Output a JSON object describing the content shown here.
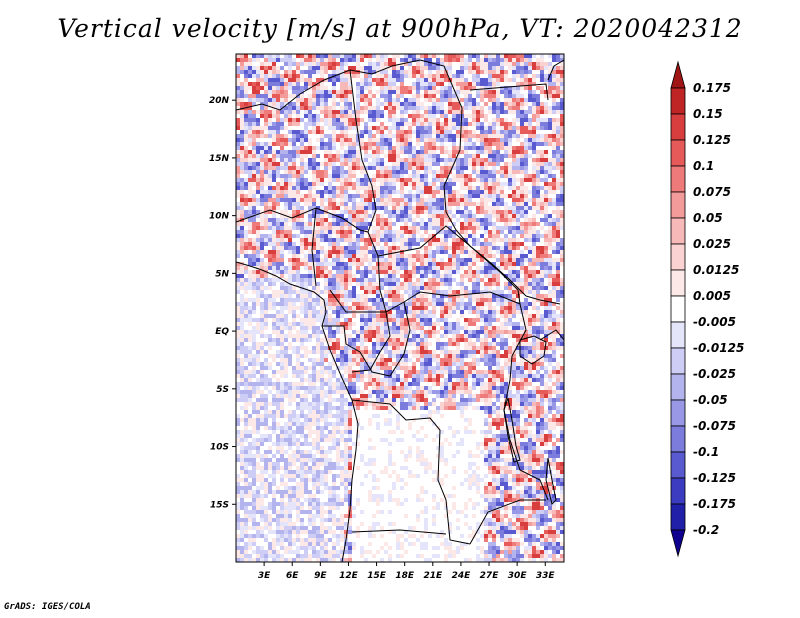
{
  "title": "Vertical velocity [m/s] at 900hPa, VT: 2020042312",
  "credit": "GrADS: IGES/COLA",
  "chart_data": {
    "type": "heatmap",
    "title": "Vertical velocity [m/s] at 900hPa, VT: 2020042312",
    "variable": "vertical velocity",
    "units": "m/s",
    "level": "900hPa",
    "valid_time": "2020042312",
    "x_axis": {
      "ticks": [
        3,
        6,
        9,
        12,
        15,
        18,
        21,
        24,
        27,
        30,
        33
      ],
      "tick_labels": [
        "3E",
        "6E",
        "9E",
        "12E",
        "15E",
        "18E",
        "21E",
        "24E",
        "27E",
        "30E",
        "33E"
      ],
      "range": [
        0,
        35
      ]
    },
    "y_axis": {
      "ticks": [
        20,
        15,
        10,
        5,
        0,
        -5,
        -10,
        -15
      ],
      "tick_labels": [
        "20N",
        "15N",
        "10N",
        "5N",
        "EQ",
        "5S",
        "10S",
        "15S"
      ],
      "range": [
        -20,
        24
      ]
    },
    "colorbar": {
      "levels": [
        "0.175",
        "0.15",
        "0.125",
        "0.1",
        "0.075",
        "0.05",
        "0.025",
        "0.0125",
        "0.005",
        "-0.005",
        "-0.0125",
        "-0.025",
        "-0.05",
        "-0.075",
        "-0.1",
        "-0.125",
        "-0.175",
        "-0.2"
      ],
      "colors": [
        "#a01515",
        "#c02525",
        "#d83e3e",
        "#e65a5a",
        "#ee7a7a",
        "#f39a9a",
        "#f7b8b8",
        "#fad2d2",
        "#fde8e8",
        "#ffffff",
        "#e4e4fa",
        "#cdcdf5",
        "#b3b3ee",
        "#9898e6",
        "#7c7cdc",
        "#5a5ad0",
        "#3c3cc0",
        "#2020a8",
        "#100090"
      ]
    }
  }
}
